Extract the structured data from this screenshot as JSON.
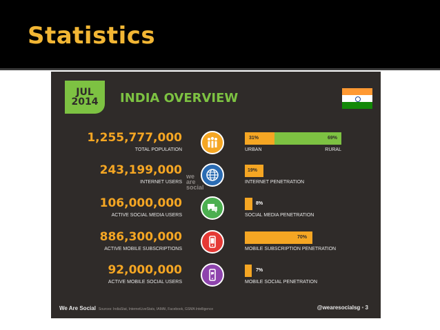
{
  "slide": {
    "title": "Statistics"
  },
  "infographic": {
    "date_month": "JUL",
    "date_year": "2014",
    "heading": "INDIA OVERVIEW",
    "watermark": [
      "we",
      "are",
      "social"
    ],
    "rows": [
      {
        "number": "1,255,777,000",
        "label": "TOTAL POPULATION",
        "icon": "people-icon",
        "icon_color": "#f5a623",
        "pct_a": "31%",
        "pct_b": "69%",
        "value_a": 31,
        "value_b": 69,
        "bar_label_a": "URBAN",
        "bar_label_b": "RURAL"
      },
      {
        "number": "243,199,000",
        "label": "INTERNET USERS",
        "icon": "globe-icon",
        "icon_color": "#2b6cb3",
        "pct": "19%",
        "value": 19,
        "bar_label": "INTERNET PENETRATION"
      },
      {
        "number": "106,000,000",
        "label": "ACTIVE SOCIAL MEDIA USERS",
        "icon": "chat-icon",
        "icon_color": "#4caf50",
        "pct": "8%",
        "value": 8,
        "bar_label": "SOCIAL MEDIA PENETRATION"
      },
      {
        "number": "886,300,000",
        "label": "ACTIVE MOBILE SUBSCRIPTIONS",
        "icon": "mobile-icon",
        "icon_color": "#e53935",
        "pct": "70%",
        "value": 70,
        "bar_label": "MOBILE SUBSCRIPTION PENETRATION"
      },
      {
        "number": "92,000,000",
        "label": "ACTIVE MOBILE SOCIAL USERS",
        "icon": "mobile-social-icon",
        "icon_color": "#8e44ad",
        "pct": "7%",
        "value": 7,
        "bar_label": "MOBILE SOCIAL PENETRATION"
      }
    ],
    "footer": {
      "brand": "We Are Social",
      "source": "Sources: IndiaStat, InternetLiveStats, IAMAI, Facebook, GSMA Intelligence",
      "handle": "@wearesocialsg",
      "page": "3"
    },
    "colors": {
      "accent": "#f5a623",
      "green": "#7dc242",
      "background": "#2f2b29",
      "title": "#f2b634"
    }
  }
}
